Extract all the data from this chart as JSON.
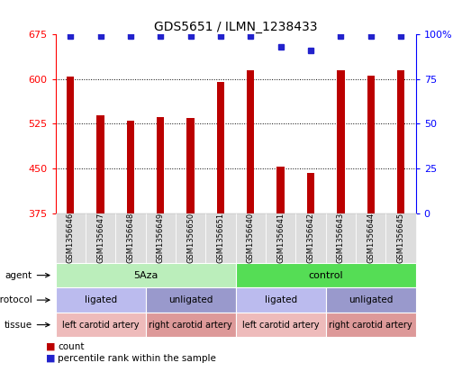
{
  "title": "GDS5651 / ILMN_1238433",
  "samples": [
    "GSM1356646",
    "GSM1356647",
    "GSM1356648",
    "GSM1356649",
    "GSM1356650",
    "GSM1356651",
    "GSM1356640",
    "GSM1356641",
    "GSM1356642",
    "GSM1356643",
    "GSM1356644",
    "GSM1356645"
  ],
  "bar_values": [
    604,
    540,
    530,
    536,
    535,
    595,
    615,
    453,
    443,
    615,
    606,
    615
  ],
  "percentile_values": [
    99,
    99,
    99,
    99,
    99,
    99,
    99,
    93,
    91,
    99,
    99,
    99
  ],
  "bar_color": "#bb0000",
  "dot_color": "#2222cc",
  "ylim_left": [
    375,
    675
  ],
  "yticks_left": [
    375,
    450,
    525,
    600,
    675
  ],
  "ylim_right": [
    0,
    100
  ],
  "yticks_right": [
    0,
    25,
    50,
    75,
    100
  ],
  "ytick_right_labels": [
    "0",
    "25",
    "50",
    "75",
    "100%"
  ],
  "agent_labels": [
    {
      "text": "5Aza",
      "start": 0,
      "end": 6,
      "color": "#bbeebb"
    },
    {
      "text": "control",
      "start": 6,
      "end": 12,
      "color": "#55dd55"
    }
  ],
  "protocol_labels": [
    {
      "text": "ligated",
      "start": 0,
      "end": 3,
      "color": "#bbbbee"
    },
    {
      "text": "unligated",
      "start": 3,
      "end": 6,
      "color": "#9999cc"
    },
    {
      "text": "ligated",
      "start": 6,
      "end": 9,
      "color": "#bbbbee"
    },
    {
      "text": "unligated",
      "start": 9,
      "end": 12,
      "color": "#9999cc"
    }
  ],
  "tissue_labels": [
    {
      "text": "left carotid artery",
      "start": 0,
      "end": 3,
      "color": "#eebbbb"
    },
    {
      "text": "right carotid artery",
      "start": 3,
      "end": 6,
      "color": "#dd9999"
    },
    {
      "text": "left carotid artery",
      "start": 6,
      "end": 9,
      "color": "#eebbbb"
    },
    {
      "text": "right carotid artery",
      "start": 9,
      "end": 12,
      "color": "#dd9999"
    }
  ],
  "row_labels": [
    "agent",
    "protocol",
    "tissue"
  ],
  "legend_items": [
    {
      "color": "#bb0000",
      "label": "count"
    },
    {
      "color": "#2222cc",
      "label": "percentile rank within the sample"
    }
  ],
  "bar_width": 0.25,
  "xtick_bg": "#dddddd",
  "fig_bg": "#ffffff"
}
